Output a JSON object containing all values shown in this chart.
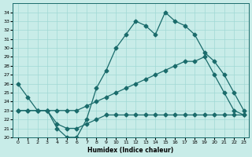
{
  "xlabel": "Humidex (Indice chaleur)",
  "ylabel": "",
  "xlim": [
    -0.5,
    23.5
  ],
  "ylim": [
    20,
    35
  ],
  "yticks": [
    20,
    21,
    22,
    23,
    24,
    25,
    26,
    27,
    28,
    29,
    30,
    31,
    32,
    33,
    34
  ],
  "xticks": [
    0,
    1,
    2,
    3,
    4,
    5,
    6,
    7,
    8,
    9,
    10,
    11,
    12,
    13,
    14,
    15,
    16,
    17,
    18,
    19,
    20,
    21,
    22,
    23
  ],
  "bg_color": "#c8ece8",
  "line_color": "#1a6b6b",
  "line1_x": [
    0,
    1,
    2,
    3,
    4,
    5,
    6,
    7,
    8,
    9,
    10,
    11,
    12,
    13,
    14,
    15,
    16,
    17,
    18,
    19,
    20,
    21,
    22,
    23
  ],
  "line1_y": [
    26.0,
    24.5,
    23.0,
    23.0,
    21.0,
    20.0,
    20.0,
    22.0,
    25.5,
    27.5,
    30.0,
    31.5,
    33.0,
    32.5,
    31.5,
    34.0,
    33.0,
    32.5,
    31.5,
    29.5,
    28.5,
    27.0,
    25.0,
    23.0
  ],
  "line2_x": [
    0,
    1,
    2,
    3,
    4,
    5,
    6,
    7,
    8,
    9,
    10,
    11,
    12,
    13,
    14,
    15,
    16,
    17,
    18,
    19,
    20,
    21,
    22,
    23
  ],
  "line2_y": [
    23.0,
    23.0,
    23.0,
    23.0,
    23.0,
    23.0,
    23.0,
    23.5,
    24.0,
    24.5,
    25.0,
    25.5,
    26.0,
    26.5,
    27.0,
    27.5,
    28.0,
    28.5,
    28.5,
    29.0,
    27.0,
    25.0,
    23.0,
    22.5
  ],
  "line3_x": [
    0,
    1,
    2,
    3,
    4,
    5,
    6,
    7,
    8,
    9,
    10,
    11,
    12,
    13,
    14,
    15,
    16,
    17,
    18,
    19,
    20,
    21,
    22,
    23
  ],
  "line3_y": [
    23.0,
    23.0,
    23.0,
    23.0,
    21.5,
    21.0,
    21.0,
    21.5,
    22.0,
    22.5,
    22.5,
    22.5,
    22.5,
    22.5,
    22.5,
    22.5,
    22.5,
    22.5,
    22.5,
    22.5,
    22.5,
    22.5,
    22.5,
    22.5
  ]
}
